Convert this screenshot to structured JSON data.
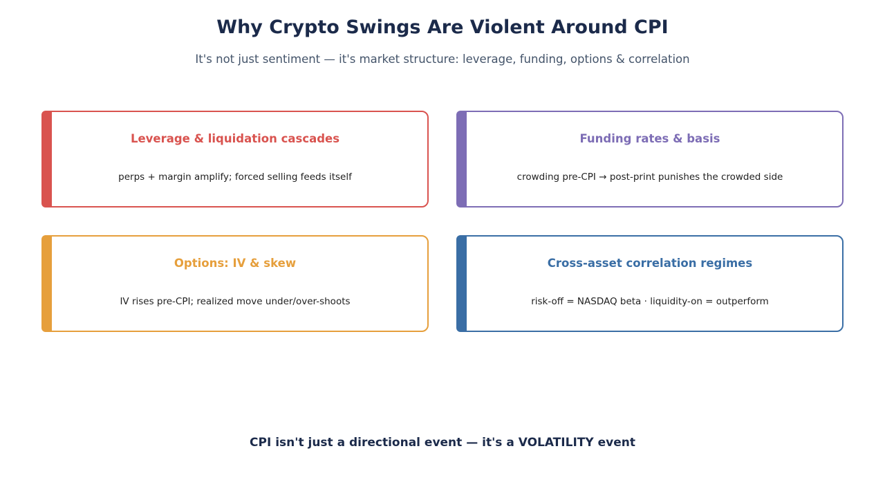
{
  "title": "Why Crypto Swings Are Violent Around CPI",
  "subtitle": "It's not just sentiment — it's market structure: leverage, funding, options & correlation",
  "cards": [
    {
      "title": "Leverage & liquidation cascades",
      "description": "perps + margin amplify; forced selling feeds itself",
      "color": "#d9534f"
    },
    {
      "title": "Funding rates & basis",
      "description": "crowding pre-CPI → post-print punishes the crowded side",
      "color": "#7d6db5"
    },
    {
      "title": "Options: IV & skew",
      "description": "IV rises pre-CPI; realized move under/over-shoots",
      "color": "#e69f3c"
    },
    {
      "title": "Cross-asset correlation regimes",
      "description": "risk-off = NASDAQ beta · liquidity-on = outperform",
      "color": "#3a6ea5"
    }
  ],
  "footer": "CPI isn't just a directional event — it's a VOLATILITY event"
}
